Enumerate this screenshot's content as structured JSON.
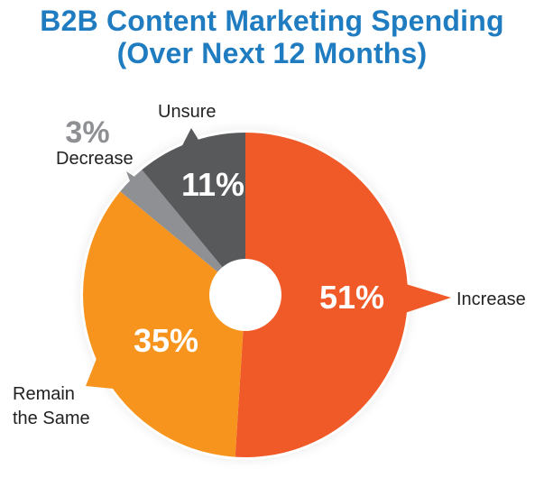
{
  "chart_data": {
    "type": "pie",
    "title_line_1": "B2B Content Marketing Spending",
    "title_line_2": "(Over Next 12 Months)",
    "slices": [
      {
        "label": "Increase",
        "value": 51,
        "value_label": "51%",
        "color": "#f05a28"
      },
      {
        "label_lines": [
          "Remain",
          "the Same"
        ],
        "value": 35,
        "value_label": "35%",
        "color": "#f7941d"
      },
      {
        "label": "Decrease",
        "value": 3,
        "value_label": "3%",
        "color": "#8e9093"
      },
      {
        "label": "Unsure",
        "value": 11,
        "value_label": "11%",
        "color": "#58595b"
      }
    ],
    "title_color": "#1f7cc0",
    "donut_hole": true
  }
}
